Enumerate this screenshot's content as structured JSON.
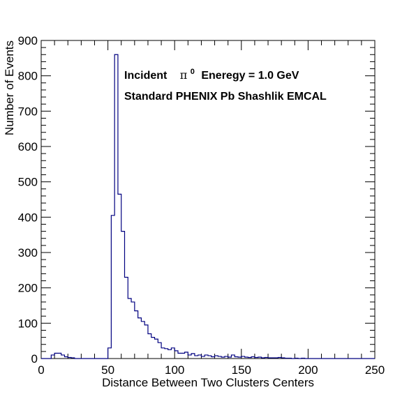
{
  "chart_data": {
    "type": "histogram",
    "xlabel": "Distance Between Two Clusters Centers",
    "ylabel": "Number of Events",
    "xlim": [
      0,
      250
    ],
    "ylim": [
      0,
      900
    ],
    "x_ticks": [
      "0",
      "50",
      "100",
      "150",
      "200",
      "250"
    ],
    "y_ticks": [
      "0",
      "100",
      "200",
      "300",
      "400",
      "500",
      "600",
      "700",
      "800",
      "900"
    ],
    "bin_width": 2.5,
    "annotations": {
      "line1_prefix": "Incident",
      "line1_symbol": "π",
      "line1_superscript": "0",
      "line1_suffix": "Eneregy = 1.0 GeV",
      "line2": "Standard PHENIX Pb Shashlik EMCAL"
    },
    "line_color": "#000080",
    "bins": [
      {
        "x": 7.5,
        "y": 10
      },
      {
        "x": 10,
        "y": 15
      },
      {
        "x": 12.5,
        "y": 15
      },
      {
        "x": 15,
        "y": 10
      },
      {
        "x": 17.5,
        "y": 5
      },
      {
        "x": 20,
        "y": 3
      },
      {
        "x": 22.5,
        "y": 2
      },
      {
        "x": 50,
        "y": 30
      },
      {
        "x": 52.5,
        "y": 405
      },
      {
        "x": 55,
        "y": 860
      },
      {
        "x": 57.5,
        "y": 465
      },
      {
        "x": 60,
        "y": 360
      },
      {
        "x": 62.5,
        "y": 230
      },
      {
        "x": 65,
        "y": 170
      },
      {
        "x": 67.5,
        "y": 160
      },
      {
        "x": 70,
        "y": 135
      },
      {
        "x": 72.5,
        "y": 115
      },
      {
        "x": 75,
        "y": 105
      },
      {
        "x": 77.5,
        "y": 95
      },
      {
        "x": 80,
        "y": 70
      },
      {
        "x": 82.5,
        "y": 60
      },
      {
        "x": 85,
        "y": 55
      },
      {
        "x": 87.5,
        "y": 45
      },
      {
        "x": 90,
        "y": 30
      },
      {
        "x": 92.5,
        "y": 28
      },
      {
        "x": 95,
        "y": 25
      },
      {
        "x": 97.5,
        "y": 30
      },
      {
        "x": 100,
        "y": 22
      },
      {
        "x": 102.5,
        "y": 15
      },
      {
        "x": 105,
        "y": 15
      },
      {
        "x": 107.5,
        "y": 18
      },
      {
        "x": 110,
        "y": 10
      },
      {
        "x": 112.5,
        "y": 14
      },
      {
        "x": 115,
        "y": 8
      },
      {
        "x": 117.5,
        "y": 10
      },
      {
        "x": 120,
        "y": 6
      },
      {
        "x": 122.5,
        "y": 10
      },
      {
        "x": 125,
        "y": 8
      },
      {
        "x": 127.5,
        "y": 5
      },
      {
        "x": 130,
        "y": 8
      },
      {
        "x": 132.5,
        "y": 6
      },
      {
        "x": 135,
        "y": 4
      },
      {
        "x": 137.5,
        "y": 6
      },
      {
        "x": 140,
        "y": 4
      },
      {
        "x": 142.5,
        "y": 10
      },
      {
        "x": 145,
        "y": 5
      },
      {
        "x": 147.5,
        "y": 4
      },
      {
        "x": 150,
        "y": 6
      },
      {
        "x": 152.5,
        "y": 4
      },
      {
        "x": 155,
        "y": 3
      },
      {
        "x": 157.5,
        "y": 5
      },
      {
        "x": 160,
        "y": 3
      },
      {
        "x": 162.5,
        "y": 4
      },
      {
        "x": 165,
        "y": 2
      },
      {
        "x": 167.5,
        "y": 3
      },
      {
        "x": 170,
        "y": 2
      },
      {
        "x": 172.5,
        "y": 2
      },
      {
        "x": 175,
        "y": 2
      },
      {
        "x": 177.5,
        "y": 3
      },
      {
        "x": 180,
        "y": 2
      },
      {
        "x": 182.5,
        "y": 1
      },
      {
        "x": 185,
        "y": 1
      },
      {
        "x": 190,
        "y": 1
      },
      {
        "x": 195,
        "y": 1
      }
    ]
  }
}
